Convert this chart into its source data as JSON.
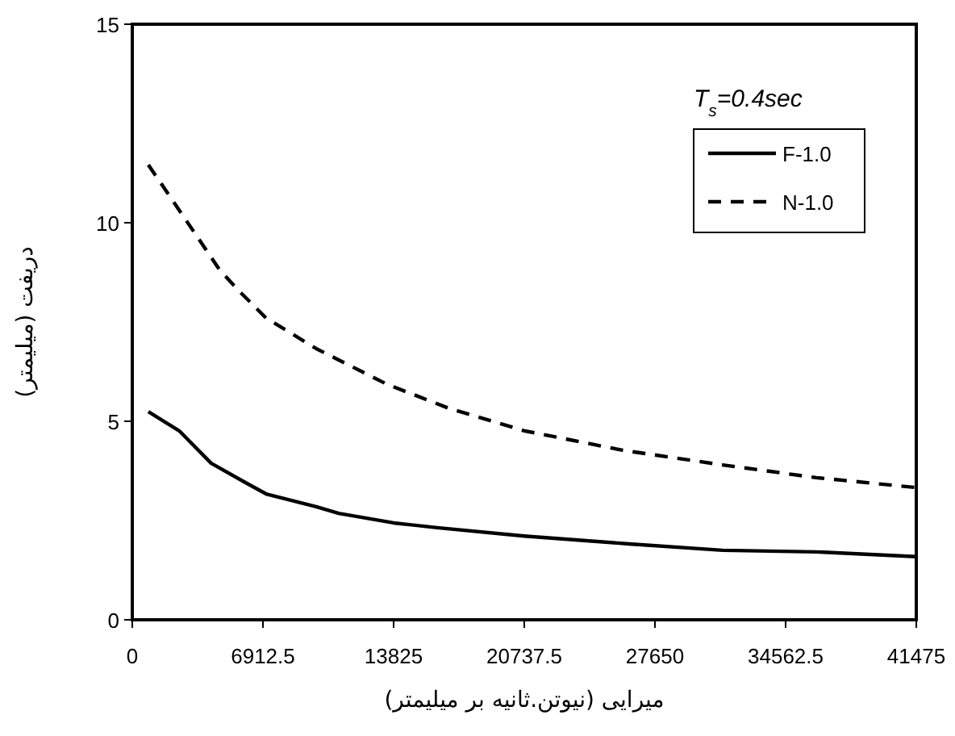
{
  "chart_data": {
    "type": "line",
    "xlabel": "میرایی (نیوتن.ثانیه بر میلیمتر)",
    "ylabel": "دریفت  (میلیمتر)",
    "legend_title": "T$_{s}$=0.4sec",
    "xlim": [
      0,
      41475
    ],
    "xticks": [
      0,
      6912.5,
      13825,
      20737.5,
      27650,
      34562.5,
      41475
    ],
    "ylim": [
      0,
      15
    ],
    "yticks": [
      0,
      5,
      10,
      15
    ],
    "grid": false,
    "legend": "top right",
    "marker": "none",
    "series": [
      {
        "name": "F-1.0",
        "color": "#000000",
        "line_style": "solid",
        "x": [
          850,
          2480,
          4180,
          5970,
          7080,
          9730,
          10920,
          13825,
          16130,
          20740,
          26290,
          31230,
          36180,
          41475
        ],
        "values": [
          5.24,
          4.76,
          3.94,
          3.46,
          3.17,
          2.85,
          2.68,
          2.44,
          2.32,
          2.11,
          1.91,
          1.75,
          1.71,
          1.59
        ]
      },
      {
        "name": "N-1.0",
        "color": "#000000",
        "line_style": "dashed",
        "x": [
          850,
          2820,
          4610,
          5630,
          7080,
          9730,
          13480,
          16730,
          20740,
          25950,
          31230,
          36180,
          41475
        ],
        "values": [
          11.46,
          10.08,
          8.82,
          8.29,
          7.6,
          6.83,
          5.93,
          5.33,
          4.76,
          4.27,
          3.9,
          3.58,
          3.33
        ]
      }
    ]
  }
}
